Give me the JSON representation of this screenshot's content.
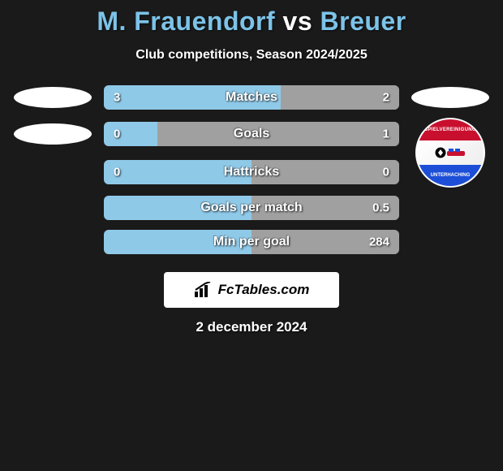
{
  "header": {
    "player1": "M. Frauendorf",
    "vs": "vs",
    "player2": "Breuer",
    "subtitle": "Club competitions, Season 2024/2025"
  },
  "colors": {
    "left_bar": "#8fc9e8",
    "right_bar": "#a0a0a0",
    "background_bar": "#666666",
    "page_bg": "#1a1a1a",
    "title_accent": "#7cc3e8"
  },
  "stats": [
    {
      "label": "Matches",
      "left_val": "3",
      "right_val": "2",
      "left_pct": 60,
      "right_pct": 40
    },
    {
      "label": "Goals",
      "left_val": "0",
      "right_val": "1",
      "left_pct": 18,
      "right_pct": 82
    },
    {
      "label": "Hattricks",
      "left_val": "0",
      "right_val": "0",
      "left_pct": 50,
      "right_pct": 50
    },
    {
      "label": "Goals per match",
      "left_val": "",
      "right_val": "0.5",
      "left_pct": 50,
      "right_pct": 50
    },
    {
      "label": "Min per goal",
      "left_val": "",
      "right_val": "284",
      "left_pct": 50,
      "right_pct": 50
    }
  ],
  "left_icons": {
    "icon1": "player-ellipse",
    "icon2": "player-ellipse"
  },
  "right_icons": {
    "icon1": "player-ellipse",
    "icon2": "club-badge",
    "badge_top_text": "SPIELVEREINIGUNG",
    "badge_bottom_text": "UNTERHACHING"
  },
  "branding": {
    "text": "FcTables.com"
  },
  "footer": {
    "date": "2 december 2024"
  }
}
